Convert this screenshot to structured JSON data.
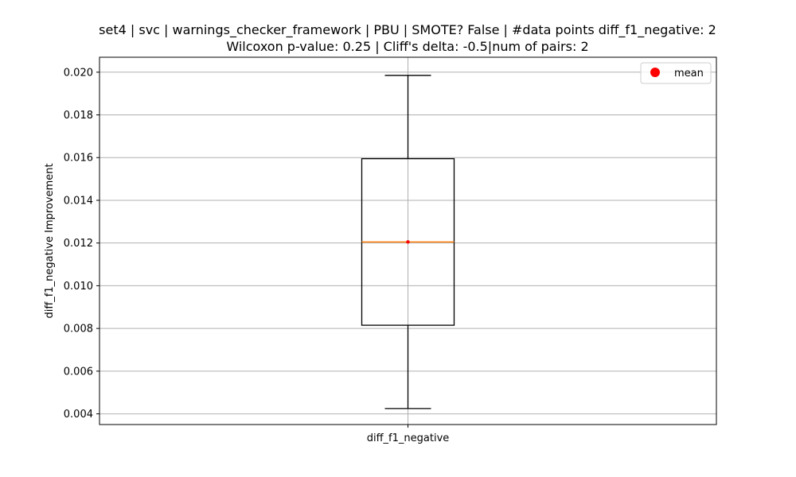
{
  "chart_data": {
    "type": "box",
    "title_line1": "set4 | svc | warnings_checker_framework | PBU | SMOTE? False | #data points diff_f1_negative: 2",
    "title_line2": "Wilcoxon p-value: 0.25 | Cliff's delta: -0.5|num of pairs: 2",
    "xlabel": "",
    "ylabel": "diff_f1_negative Improvement",
    "categories": [
      "diff_f1_negative"
    ],
    "ylim": [
      0.0035,
      0.0207
    ],
    "yticks": [
      0.004,
      0.006,
      0.008,
      0.01,
      0.012,
      0.014,
      0.016,
      0.018,
      0.02
    ],
    "ytick_labels": [
      "0.004",
      "0.006",
      "0.008",
      "0.010",
      "0.012",
      "0.014",
      "0.016",
      "0.018",
      "0.020"
    ],
    "grid": true,
    "legend": {
      "position": "top-right",
      "entries": [
        {
          "label": "mean",
          "marker": "red-dot"
        }
      ]
    },
    "boxes": [
      {
        "category": "diff_f1_negative",
        "whisker_low": 0.00425,
        "q1": 0.00815,
        "median": 0.01205,
        "q3": 0.01595,
        "whisker_high": 0.01985,
        "mean": 0.01205
      }
    ],
    "colors": {
      "box": "#000000",
      "median": "#ff7f0e",
      "mean": "#ff0000",
      "grid": "#b0b0b0"
    }
  }
}
